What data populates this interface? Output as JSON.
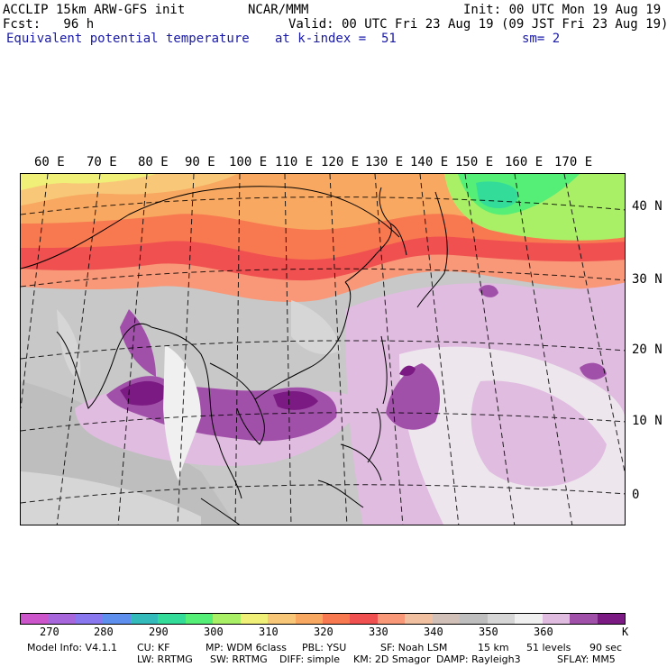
{
  "header": {
    "model": "ACCLIP 15km ARW-GFS init",
    "center": "NCAR/MMM",
    "init": "Init: 00 UTC Mon 19 Aug 19",
    "fcst": "Fcst:   96 h",
    "valid": "Valid: 00 UTC Fri 23 Aug 19 (09 JST Fri 23 Aug 19)",
    "field": "Equivalent potential temperature",
    "level": "at k-index =  51",
    "smooth": "sm= 2"
  },
  "map": {
    "lon_labels": [
      "60 E",
      "70 E",
      "80 E",
      "90 E",
      "100 E",
      "110 E",
      "120 E",
      "130 E",
      "140 E",
      "150 E",
      "160 E",
      "170 E"
    ],
    "lat_labels": [
      "40 N",
      "30 N",
      "20 N",
      "10 N",
      "0"
    ]
  },
  "colorbar": {
    "colors": [
      "#cc55cc",
      "#a866dd",
      "#8877ee",
      "#5e8eee",
      "#33bbbb",
      "#33dd99",
      "#55ee77",
      "#aaf066",
      "#f0f078",
      "#f8c878",
      "#f8a860",
      "#f87850",
      "#f05050",
      "#f89878",
      "#f0c0a0",
      "#d0c0b8",
      "#bebebe",
      "#d6d6d6",
      "#f0f0f0",
      "#e0bce0",
      "#a050a8",
      "#7a1a82"
    ],
    "tick_labels": [
      "270",
      "280",
      "290",
      "300",
      "310",
      "320",
      "330",
      "340",
      "350",
      "360"
    ],
    "units": "K"
  },
  "footer": {
    "line1": [
      "Model Info: V4.1.1",
      "CU: KF",
      "MP: WDM 6class",
      "PBL: YSU",
      "SF: Noah LSM",
      "15 km",
      "51 levels",
      "90 sec"
    ],
    "line2": [
      "LW: RRTMG",
      "SW: RRTMG",
      "DIFF: simple",
      "KM: 2D Smagor",
      "DAMP: Rayleigh3",
      "SFLAY: MM5"
    ]
  }
}
